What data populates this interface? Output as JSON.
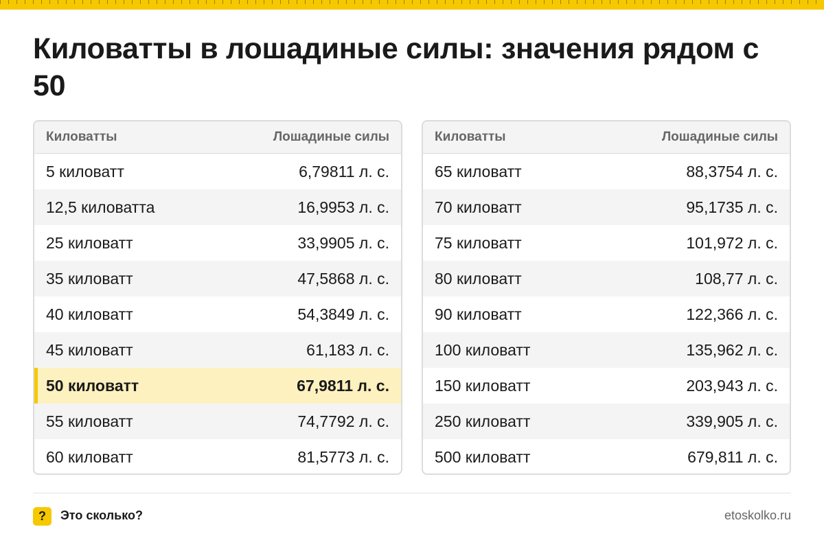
{
  "title": "Киловатты в лошадиные силы: значения рядом с 50",
  "colors": {
    "accent": "#f6c800",
    "highlight": "#fdf1bf",
    "stripe": "#f4f4f4",
    "border": "#dcdcdc",
    "muted": "#666666"
  },
  "tables": [
    {
      "headers": [
        "Киловатты",
        "Лошадиные силы"
      ],
      "rows": [
        [
          "5 киловатт",
          "6,79811 л. с."
        ],
        [
          "12,5 киловатта",
          "16,9953 л. с."
        ],
        [
          "25 киловатт",
          "33,9905 л. с."
        ],
        [
          "35 киловатт",
          "47,5868 л. с."
        ],
        [
          "40 киловатт",
          "54,3849 л. с."
        ],
        [
          "45 киловатт",
          "61,183 л. с."
        ],
        [
          "50 киловатт",
          "67,9811 л. с."
        ],
        [
          "55 киловатт",
          "74,7792 л. с."
        ],
        [
          "60 киловатт",
          "81,5773 л. с."
        ]
      ],
      "highlight_row": 6
    },
    {
      "headers": [
        "Киловатты",
        "Лошадиные силы"
      ],
      "rows": [
        [
          "65 киловатт",
          "88,3754 л. с."
        ],
        [
          "70 киловатт",
          "95,1735 л. с."
        ],
        [
          "75 киловатт",
          "101,972 л. с."
        ],
        [
          "80 киловатт",
          "108,77 л. с."
        ],
        [
          "90 киловатт",
          "122,366 л. с."
        ],
        [
          "100 киловатт",
          "135,962 л. с."
        ],
        [
          "150 киловатт",
          "203,943 л. с."
        ],
        [
          "250 киловатт",
          "339,905 л. с."
        ],
        [
          "500 киловатт",
          "679,811 л. с."
        ]
      ],
      "highlight_row": -1
    }
  ],
  "footer": {
    "icon": "question-mark-icon",
    "icon_glyph": "?",
    "brand": "Это сколько?",
    "site": "etoskolko.ru"
  }
}
